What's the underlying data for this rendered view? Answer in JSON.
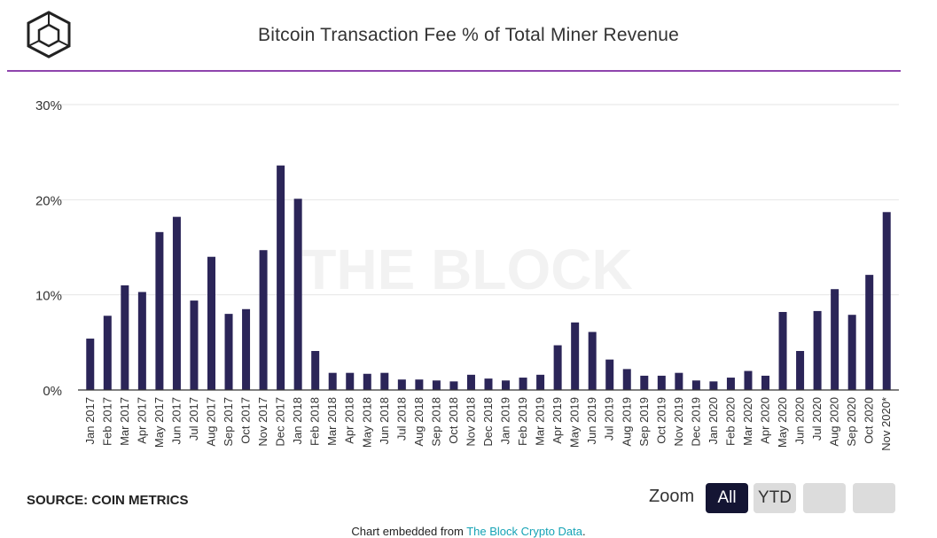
{
  "title": "Bitcoin Transaction Fee % of Total Miner Revenue",
  "watermark": "THE BLOCK",
  "source": "SOURCE: COIN METRICS",
  "zoom": {
    "label": "Zoom",
    "buttons": [
      {
        "label": "All",
        "active": true
      },
      {
        "label": "YTD",
        "active": false
      },
      {
        "label": "",
        "active": false
      },
      {
        "label": "",
        "active": false
      }
    ]
  },
  "footer": {
    "prefix": "Chart embedded from ",
    "link_text": "The Block Crypto Data",
    "suffix": "."
  },
  "colors": {
    "bar": "#2b2558",
    "accent_rule": "#8e44ad",
    "grid": "#e6e6e6",
    "link": "#15a3b5"
  },
  "chart_data": {
    "type": "bar",
    "title": "Bitcoin Transaction Fee % of Total Miner Revenue",
    "xlabel": "",
    "ylabel": "",
    "ylim": [
      0,
      30
    ],
    "yticks": [
      "0%",
      "10%",
      "20%",
      "30%"
    ],
    "grid": true,
    "categories": [
      "Jan 2017",
      "Feb 2017",
      "Mar 2017",
      "Apr 2017",
      "May 2017",
      "Jun 2017",
      "Jul 2017",
      "Aug 2017",
      "Sep 2017",
      "Oct 2017",
      "Nov 2017",
      "Dec 2017",
      "Jan 2018",
      "Feb 2018",
      "Mar 2018",
      "Apr 2018",
      "May 2018",
      "Jun 2018",
      "Jul 2018",
      "Aug 2018",
      "Sep 2018",
      "Oct 2018",
      "Nov 2018",
      "Dec 2018",
      "Jan 2019",
      "Feb 2019",
      "Mar 2019",
      "Apr 2019",
      "May 2019",
      "Jun 2019",
      "Jul 2019",
      "Aug 2019",
      "Sep 2019",
      "Oct 2019",
      "Nov 2019",
      "Dec 2019",
      "Jan 2020",
      "Feb 2020",
      "Mar 2020",
      "Apr 2020",
      "May 2020",
      "Jun 2020",
      "Jul 2020",
      "Aug 2020",
      "Sep 2020",
      "Oct 2020",
      "Nov 2020*"
    ],
    "values": [
      5.4,
      7.8,
      11.0,
      10.3,
      16.6,
      18.2,
      9.4,
      14.0,
      8.0,
      8.5,
      14.7,
      23.6,
      20.1,
      4.1,
      1.8,
      1.8,
      1.7,
      1.8,
      1.1,
      1.1,
      1.0,
      0.9,
      1.6,
      1.2,
      1.0,
      1.3,
      1.6,
      4.7,
      7.1,
      6.1,
      3.2,
      2.2,
      1.5,
      1.5,
      1.8,
      1.0,
      0.9,
      1.3,
      2.0,
      1.5,
      8.2,
      4.1,
      8.3,
      10.6,
      7.9,
      12.1,
      18.7
    ]
  }
}
